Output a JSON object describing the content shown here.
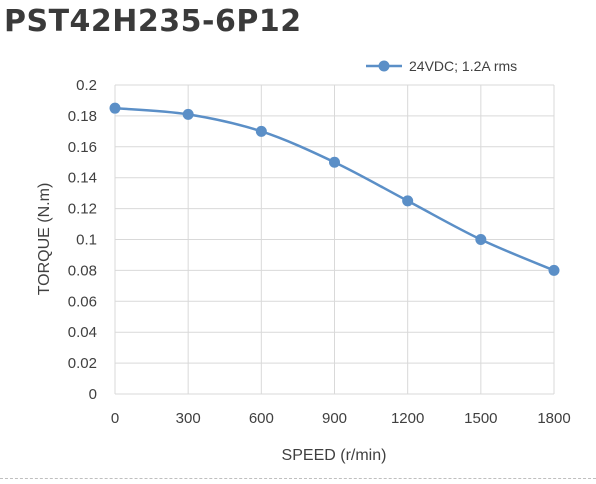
{
  "chart_data": {
    "type": "line",
    "title": "PST42H235-6P12",
    "xlabel": "SPEED (r/min)",
    "ylabel": "TORQUE (N.m)",
    "x": [
      0,
      300,
      600,
      900,
      1200,
      1500,
      1800
    ],
    "xticks": [
      "0",
      "300",
      "600",
      "900",
      "1200",
      "1500",
      "1800"
    ],
    "xlim": [
      0,
      1800
    ],
    "ylim": [
      0,
      0.2
    ],
    "yticks": [
      "0",
      "0.02",
      "0.04",
      "0.06",
      "0.08",
      "0.1",
      "0.12",
      "0.14",
      "0.16",
      "0.18",
      "0.2"
    ],
    "grid": true,
    "legend": "top-right",
    "series": [
      {
        "name": "24VDC; 1.2A rms",
        "values": [
          0.185,
          0.181,
          0.17,
          0.15,
          0.125,
          0.1,
          0.08
        ],
        "color": "#5b8fc7"
      }
    ]
  }
}
